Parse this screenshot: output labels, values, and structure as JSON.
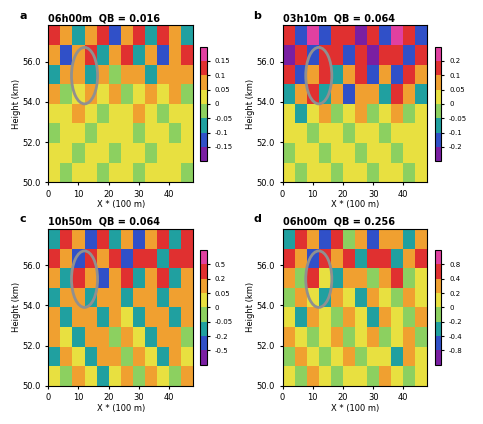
{
  "chart_data": [
    {
      "type": "heatmap",
      "panel": "a",
      "title": "06h00m  QB = 0.016",
      "x_label": "X * (100 m)",
      "y_label": "Height (km)",
      "xlim": [
        0,
        48
      ],
      "xticks": [
        0,
        10,
        20,
        30,
        40
      ],
      "ylim": [
        50,
        57.8
      ],
      "yticks": [
        {
          "value": 50,
          "label": "50.0"
        },
        {
          "value": 52,
          "label": "52.0"
        },
        {
          "value": 54,
          "label": "54.0"
        },
        {
          "value": 56,
          "label": "56.0"
        }
      ],
      "colorbar": {
        "levels": [
          -0.2,
          -0.15,
          -0.1,
          -0.05,
          0,
          0.05,
          0.1,
          0.15,
          0.2
        ],
        "ticks": [
          -0.15,
          -0.1,
          -0.05,
          0,
          0.05,
          0.1,
          0.15
        ]
      },
      "cells": [
        [
          0.02,
          -0.03,
          0.04,
          0.01,
          -0.02,
          0.03,
          0.02,
          -0.01,
          0.03,
          0.01,
          0.02,
          -0.02
        ],
        [
          0.03,
          0.01,
          -0.02,
          0.04,
          0.02,
          -0.03,
          0.01,
          0.03,
          -0.02,
          0.04,
          0.01,
          0.02
        ],
        [
          -0.02,
          0.04,
          0.02,
          -0.01,
          0.03,
          0.02,
          0.04,
          -0.02,
          0.02,
          0.03,
          -0.01,
          0.03
        ],
        [
          0.04,
          0.02,
          0.05,
          0.03,
          -0.02,
          0.04,
          0.02,
          0.05,
          0.03,
          -0.03,
          0.04,
          0.02
        ],
        [
          0.06,
          -0.04,
          0.03,
          0.07,
          0.04,
          0.06,
          -0.05,
          0.04,
          0.07,
          0.03,
          0.05,
          -0.04
        ],
        [
          -0.06,
          0.08,
          0.05,
          -0.07,
          0.09,
          -0.04,
          0.06,
          0.08,
          -0.06,
          0.07,
          0.05,
          0.06
        ],
        [
          0.07,
          -0.12,
          0.06,
          0.11,
          -0.08,
          0.09,
          0.12,
          -0.07,
          0.06,
          -0.13,
          0.08,
          0.1
        ],
        [
          0.11,
          0.06,
          -0.09,
          0.08,
          0.12,
          -0.11,
          0.07,
          0.1,
          -0.08,
          0.12,
          0.06,
          -0.1
        ]
      ]
    },
    {
      "type": "heatmap",
      "panel": "b",
      "title": "03h10m  QB = 0.064",
      "x_label": "X * (100 m)",
      "y_label": "Height (km)",
      "xlim": [
        0,
        48
      ],
      "xticks": [
        0,
        10,
        20,
        30,
        40
      ],
      "ylim": [
        50,
        57.8
      ],
      "yticks": [
        {
          "value": 50,
          "label": "50.0"
        },
        {
          "value": 52,
          "label": "52.0"
        },
        {
          "value": 54,
          "label": "54.0"
        },
        {
          "value": 56,
          "label": "56.0"
        }
      ],
      "colorbar": {
        "levels": [
          -0.3,
          -0.2,
          -0.1,
          -0.05,
          0,
          0.05,
          0.1,
          0.2,
          0.3
        ],
        "ticks": [
          -0.2,
          -0.1,
          -0.05,
          0,
          0.05,
          0.1,
          0.2
        ]
      },
      "cells": [
        [
          0.03,
          -0.04,
          0.02,
          0.04,
          -0.03,
          0.02,
          0.03,
          -0.02,
          0.04,
          0.01,
          -0.03,
          0.02
        ],
        [
          -0.02,
          0.03,
          0.04,
          -0.03,
          0.02,
          0.04,
          -0.02,
          0.03,
          0.02,
          -0.04,
          0.03,
          0.01
        ],
        [
          0.04,
          0.02,
          -0.03,
          0.03,
          0.04,
          -0.02,
          0.03,
          0.02,
          -0.03,
          0.04,
          0.02,
          0.03
        ],
        [
          0.02,
          -0.06,
          0.04,
          0.06,
          -0.04,
          0.03,
          0.07,
          -0.05,
          0.03,
          0.05,
          -0.04,
          0.04
        ],
        [
          -0.08,
          0.07,
          0.12,
          -0.06,
          0.09,
          -0.11,
          0.06,
          0.08,
          -0.07,
          0.1,
          0.05,
          -0.06
        ],
        [
          0.12,
          -0.15,
          0.08,
          0.14,
          -0.1,
          0.07,
          0.13,
          -0.12,
          0.09,
          -0.16,
          0.11,
          0.08
        ],
        [
          -0.22,
          0.14,
          -0.18,
          0.12,
          0.16,
          -0.14,
          0.1,
          -0.24,
          0.15,
          0.12,
          -0.2,
          0.14
        ],
        [
          0.16,
          -0.12,
          0.22,
          -0.16,
          0.12,
          0.18,
          -0.22,
          0.14,
          -0.12,
          0.2,
          0.13,
          -0.15
        ]
      ]
    },
    {
      "type": "heatmap",
      "panel": "c",
      "title": "10h50m  QB = 0.064",
      "x_label": "X * (100 m)",
      "y_label": "Height (km)",
      "xlim": [
        0,
        48
      ],
      "xticks": [
        0,
        10,
        20,
        30,
        40
      ],
      "ylim": [
        50,
        57.8
      ],
      "yticks": [
        {
          "value": 50,
          "label": "50.0"
        },
        {
          "value": 52,
          "label": "52.0"
        },
        {
          "value": 54,
          "label": "54.0"
        },
        {
          "value": 56,
          "label": "56.0"
        }
      ],
      "colorbar": {
        "levels": [
          -0.8,
          -0.5,
          -0.2,
          -0.05,
          0,
          0.05,
          0.2,
          0.5,
          0.8
        ],
        "ticks": [
          -0.5,
          -0.2,
          -0.05,
          0,
          0.05,
          0.2,
          0.5
        ]
      },
      "cells": [
        [
          0.03,
          -0.04,
          0.1,
          0.02,
          -0.06,
          0.04,
          0.08,
          -0.03,
          0.05,
          0.02,
          -0.04,
          0.06
        ],
        [
          -0.06,
          0.08,
          0.03,
          -0.1,
          0.05,
          0.12,
          -0.04,
          0.06,
          0.03,
          -0.08,
          0.1,
          0.02
        ],
        [
          0.1,
          0.04,
          -0.08,
          0.06,
          0.14,
          -0.05,
          0.08,
          0.03,
          -0.1,
          0.05,
          0.07,
          -0.04
        ],
        [
          0.06,
          -0.12,
          0.15,
          0.08,
          -0.06,
          0.1,
          0.04,
          -0.14,
          0.12,
          0.06,
          -0.08,
          0.1
        ],
        [
          -0.1,
          0.16,
          0.06,
          -0.18,
          0.12,
          0.08,
          -0.1,
          0.14,
          0.05,
          -0.12,
          0.18,
          0.06
        ],
        [
          0.18,
          -0.08,
          0.22,
          0.1,
          -0.25,
          0.14,
          0.2,
          -0.1,
          0.16,
          0.24,
          -0.12,
          0.1
        ],
        [
          0.3,
          0.12,
          -0.3,
          0.45,
          0.16,
          0.35,
          -0.22,
          0.28,
          0.4,
          -0.18,
          0.22,
          0.3
        ],
        [
          -0.15,
          0.25,
          0.14,
          -0.22,
          0.3,
          -0.12,
          0.18,
          -0.35,
          0.12,
          0.22,
          -0.16,
          0.2
        ]
      ]
    },
    {
      "type": "heatmap",
      "panel": "d",
      "title": "06h00m  QB = 0.256",
      "x_label": "X * (100 m)",
      "y_label": "Height (km)",
      "xlim": [
        0,
        48
      ],
      "xticks": [
        0,
        10,
        20,
        30,
        40
      ],
      "ylim": [
        50,
        57.8
      ],
      "yticks": [
        {
          "value": 50,
          "label": "50.0"
        },
        {
          "value": 52,
          "label": "52.0"
        },
        {
          "value": 54,
          "label": "54.0"
        },
        {
          "value": 56,
          "label": "56.0"
        }
      ],
      "colorbar": {
        "levels": [
          -1.2,
          -0.8,
          -0.4,
          -0.2,
          0,
          0.2,
          0.4,
          0.8,
          1.2
        ],
        "ticks": [
          -0.8,
          -0.4,
          -0.2,
          0,
          0.2,
          0.4,
          0.8
        ]
      },
      "cells": [
        [
          0.1,
          -0.15,
          0.3,
          0.05,
          -0.12,
          0.18,
          0.08,
          -0.1,
          0.22,
          0.06,
          -0.14,
          0.12
        ],
        [
          -0.12,
          0.25,
          0.08,
          -0.18,
          0.14,
          0.3,
          -0.08,
          0.16,
          0.05,
          -0.22,
          0.2,
          0.1
        ],
        [
          0.22,
          0.06,
          -0.2,
          0.18,
          0.35,
          -0.1,
          0.12,
          0.28,
          -0.16,
          0.08,
          0.24,
          -0.06
        ],
        [
          0.12,
          -0.25,
          0.3,
          0.1,
          -0.14,
          0.22,
          0.06,
          -0.3,
          0.26,
          0.14,
          -0.1,
          0.2
        ],
        [
          -0.2,
          0.32,
          0.12,
          -0.35,
          0.25,
          0.1,
          -0.22,
          0.3,
          0.08,
          -0.18,
          0.34,
          0.1
        ],
        [
          0.3,
          -0.12,
          0.42,
          0.15,
          -0.3,
          0.26,
          0.38,
          -0.14,
          0.22,
          0.45,
          -0.2,
          0.16
        ],
        [
          0.5,
          0.2,
          -0.45,
          0.7,
          0.25,
          0.55,
          -0.35,
          0.45,
          0.65,
          -0.3,
          0.35,
          0.5
        ],
        [
          -0.25,
          0.4,
          0.22,
          -0.5,
          0.45,
          -0.2,
          0.3,
          -0.6,
          0.2,
          0.38,
          -0.3,
          0.35
        ]
      ]
    }
  ]
}
